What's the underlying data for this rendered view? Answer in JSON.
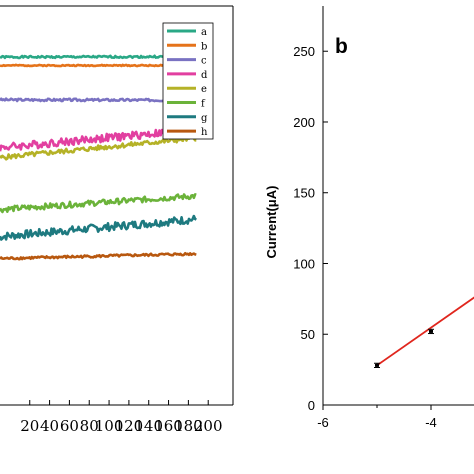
{
  "chart_data": [
    {
      "type": "line",
      "panel_label": "",
      "xlabel": "",
      "ylabel": "",
      "x_ticks": [
        "20",
        "40",
        "60",
        "80",
        "100",
        "120",
        "140",
        "160",
        "180",
        "200"
      ],
      "xlim": [
        -10,
        225
      ],
      "ylim": [
        0,
        1
      ],
      "grid": false,
      "legend": {
        "placement": "top-right",
        "entries": [
          "a",
          "b",
          "c",
          "d",
          "e",
          "f",
          "g",
          "h"
        ]
      },
      "series": [
        {
          "name": "a",
          "color": "#2aa886",
          "x_start": -10,
          "x_end": 188,
          "y_start": 0.872,
          "y_end": 0.873,
          "noise": 0.0025,
          "seed": 1
        },
        {
          "name": "b",
          "color": "#e5731a",
          "x_start": -10,
          "x_end": 188,
          "y_start": 0.851,
          "y_end": 0.851,
          "noise": 0.0015,
          "seed": 2
        },
        {
          "name": "c",
          "color": "#7a72c2",
          "x_start": -10,
          "x_end": 188,
          "y_start": 0.765,
          "y_end": 0.764,
          "noise": 0.003,
          "seed": 3
        },
        {
          "name": "d",
          "color": "#e23fa0",
          "x_start": -10,
          "x_end": 188,
          "y_start": 0.645,
          "y_end": 0.69,
          "noise": 0.01,
          "seed": 4
        },
        {
          "name": "e",
          "color": "#b5b227",
          "x_start": -10,
          "x_end": 188,
          "y_start": 0.62,
          "y_end": 0.669,
          "noise": 0.006,
          "seed": 5
        },
        {
          "name": "f",
          "color": "#6bb33a",
          "x_start": -10,
          "x_end": 188,
          "y_start": 0.49,
          "y_end": 0.524,
          "noise": 0.007,
          "seed": 6
        },
        {
          "name": "g",
          "color": "#1e7a80",
          "x_start": -10,
          "x_end": 188,
          "y_start": 0.422,
          "y_end": 0.466,
          "noise": 0.01,
          "seed": 7
        },
        {
          "name": "h",
          "color": "#b8580f",
          "x_start": -10,
          "x_end": 188,
          "y_start": 0.367,
          "y_end": 0.379,
          "noise": 0.003,
          "seed": 8
        }
      ]
    },
    {
      "type": "scatter",
      "panel_label": "b",
      "xlabel": "",
      "ylabel": "Current(μA)",
      "x_ticks": [
        "-6",
        "-4"
      ],
      "y_ticks": [
        "0",
        "50",
        "100",
        "150",
        "200",
        "250"
      ],
      "xlim": [
        -6,
        -2
      ],
      "ylim": [
        0,
        265
      ],
      "grid": false,
      "points": [
        {
          "x": -5.0,
          "y": 28,
          "err": 1.5
        },
        {
          "x": -4.0,
          "y": 52,
          "err": 1.5
        }
      ],
      "fit_line": {
        "color": "#e0261d",
        "x": [
          -5.0,
          -2.0
        ],
        "y": [
          28,
          108
        ]
      }
    }
  ]
}
